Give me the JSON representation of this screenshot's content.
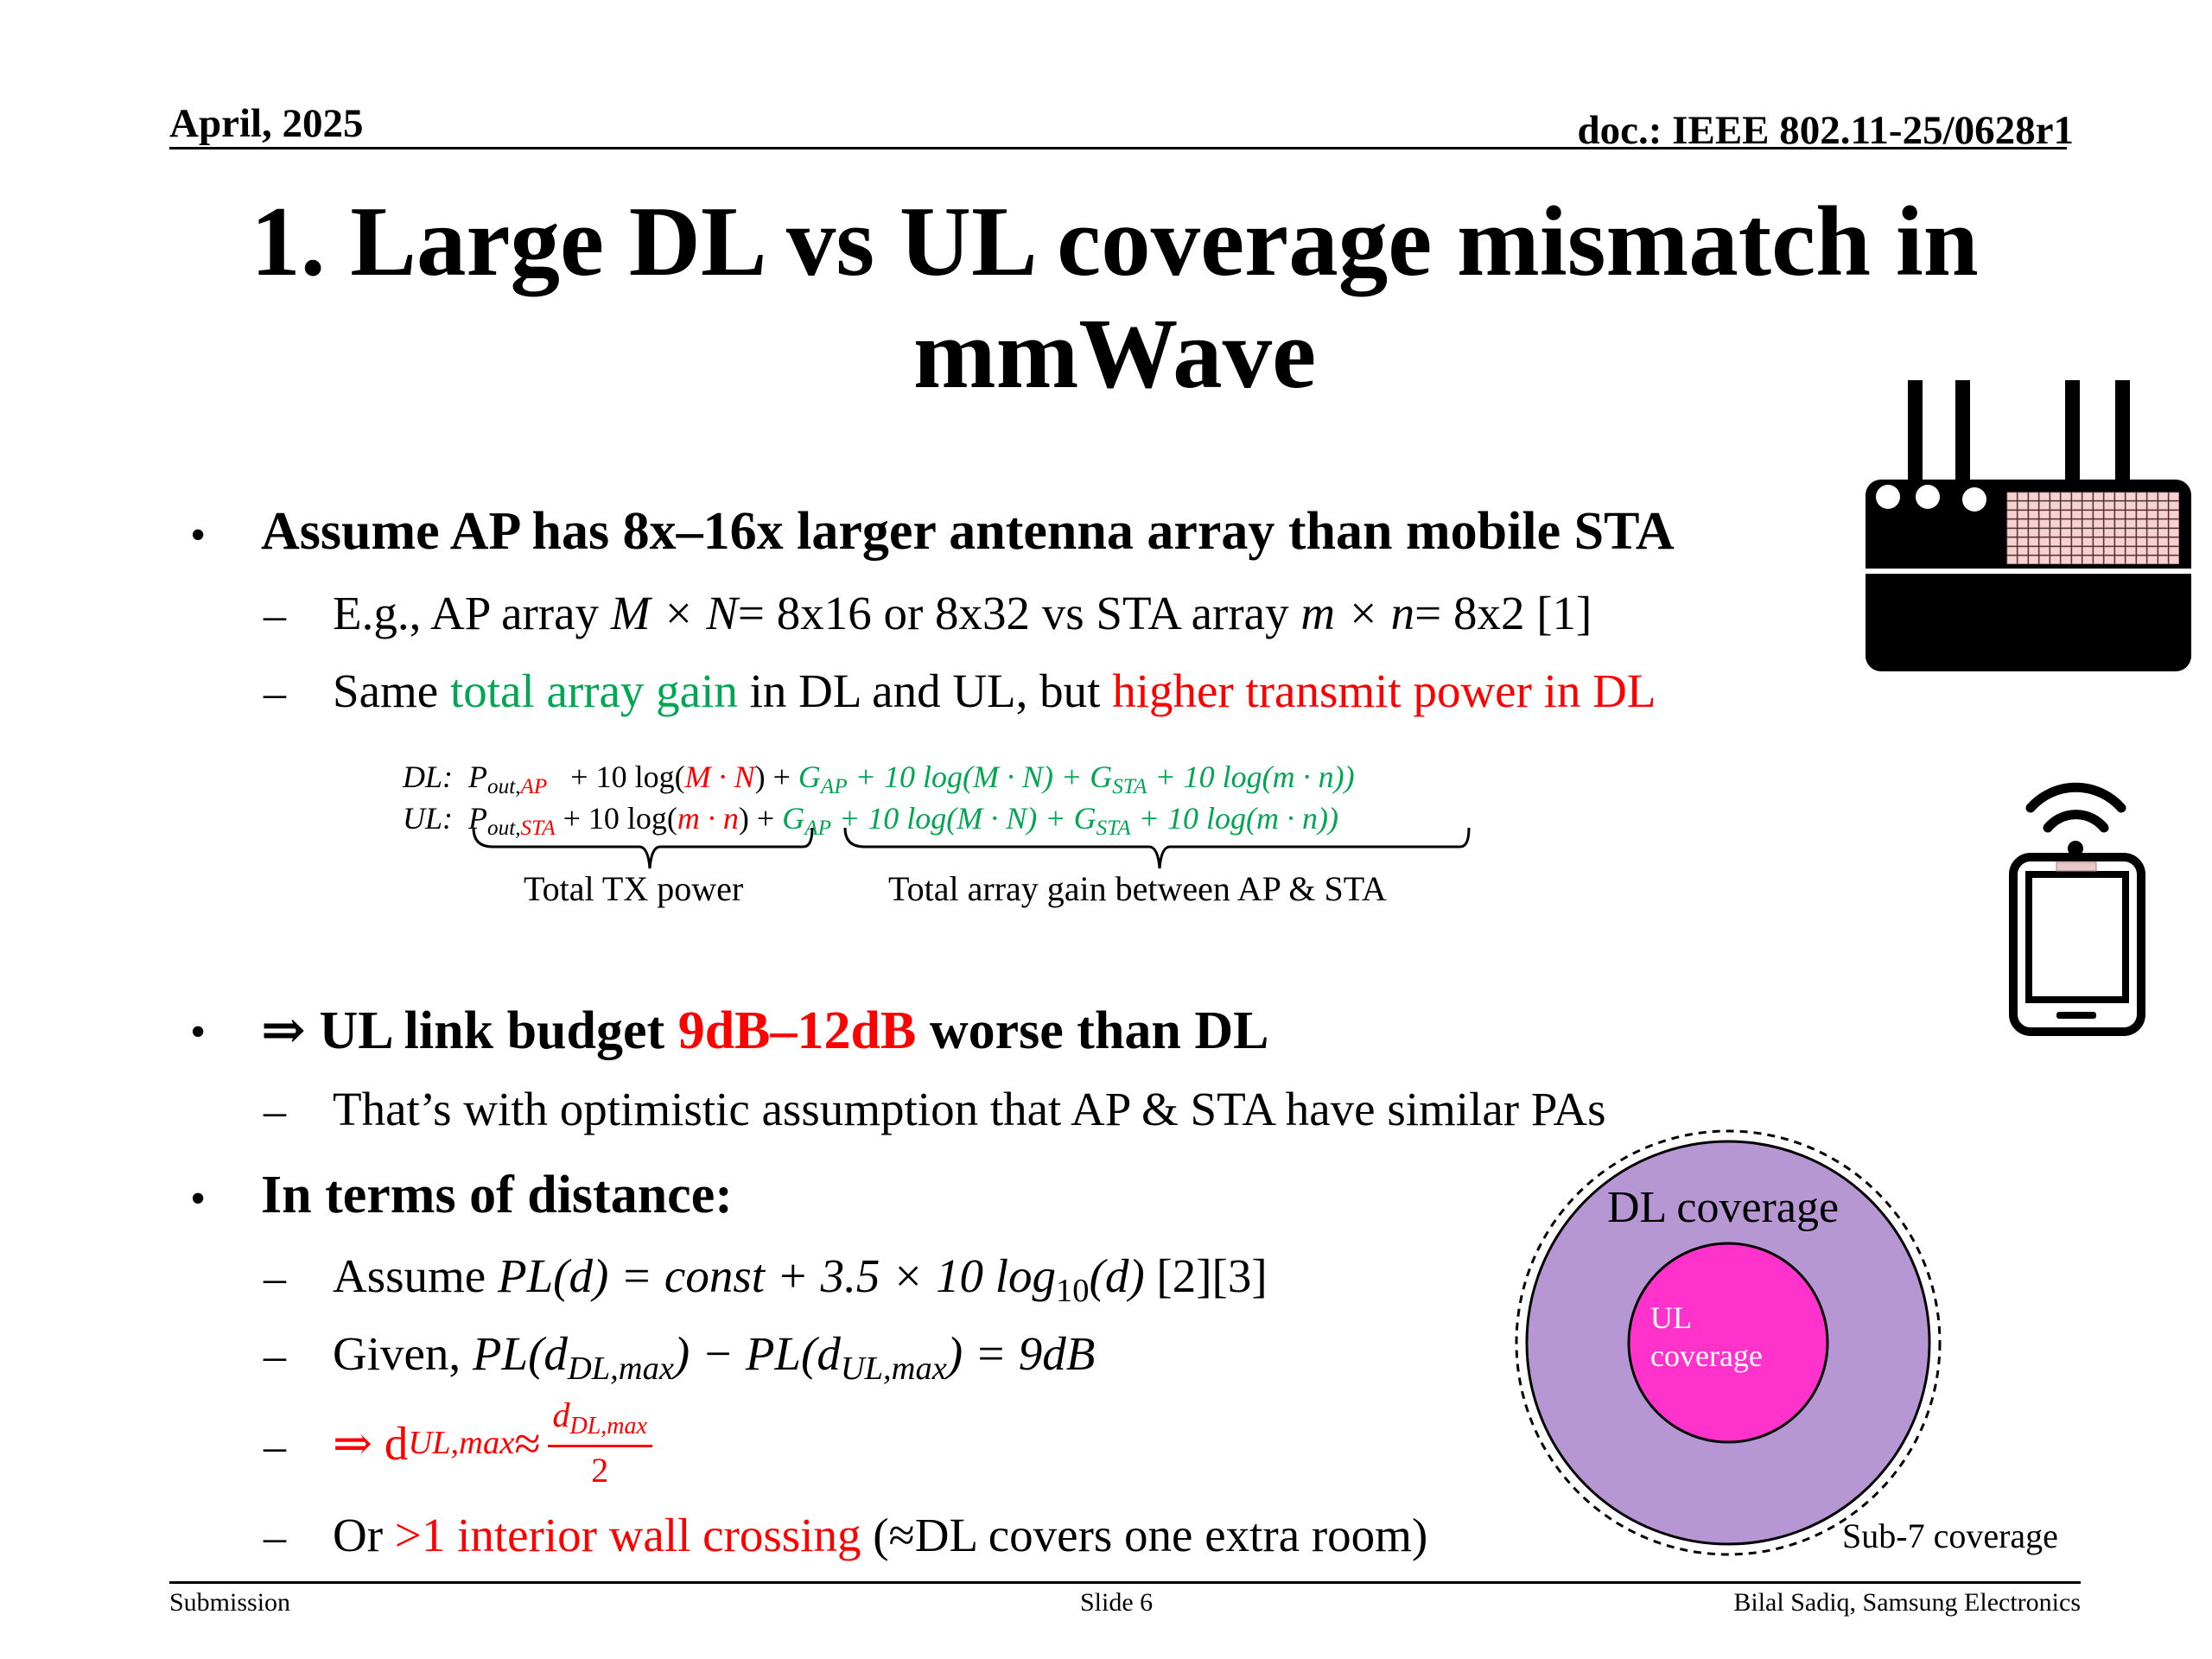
{
  "header": {
    "date": "April, 2025",
    "doc": "doc.: IEEE 802.11-25/0628r1"
  },
  "title": "1. Large DL vs UL coverage mismatch in mmWave",
  "bullets": {
    "b1": "Assume AP has 8x–16x larger antenna array than mobile STA",
    "b1_sub1": {
      "pre": "E.g., AP array ",
      "ap_math": "M × N",
      "mid": "= 8x16 or 8x32 vs STA array ",
      "sta_math": "m × n",
      "post": "= 8x2   [1]"
    },
    "b1_sub2": {
      "pre": "Same ",
      "green": "total array gain",
      "mid": " in DL and UL, but ",
      "red": "higher transmit power in DL"
    },
    "b2_pre": "⇒ UL link budget ",
    "b2_red": "9dB–12dB",
    "b2_post": " worse than DL",
    "b2_sub1": "That’s with optimistic assumption that AP & STA have similar PAs",
    "b3": "In terms of distance:",
    "b3_sub1": {
      "pre": "Assume ",
      "math": "PL(d) = const + 3.5 × 10 log",
      "sub": "10",
      "math_post": "(d)",
      "refs": "  [2][3]"
    },
    "b3_sub2": {
      "pre": "Given, ",
      "pl": "PL(d",
      "dlsub": "DL,max",
      "mid": ") − PL(d",
      "ulsub": "UL,max",
      "post": ") = 9dB"
    },
    "b3_sub3": {
      "arrow": "⇒ d",
      "ulsub": "UL,max",
      "approx": " ≈ ",
      "num": "d",
      "numsub": "DL,max",
      "den": "2"
    },
    "b3_sub4": {
      "pre": "Or ",
      "red": ">1 interior wall crossing",
      "post": " (≈DL covers one extra room)"
    }
  },
  "equation": {
    "dl_label": "DL:",
    "ul_label": "UL:",
    "p": "P",
    "out": "out,",
    "ap": "AP",
    "sta": "STA",
    "plus10log": "+ 10 log(",
    "dl_mn": "M · N",
    "ul_mn": "m · n",
    "close": ")",
    "plus": "+",
    "gain": "G",
    "gain_ap": "AP",
    "gain_mid": " + 10 log(M · N) + G",
    "gain_sta": "STA",
    "gain_end": " + 10 log(m · n)",
    "total_tx": "Total TX power",
    "total_gain": "Total array gain between AP & STA"
  },
  "coverage": {
    "dl": "DL coverage",
    "ul_line1": "UL",
    "ul_line2": "coverage",
    "sub7": "Sub-7 coverage",
    "colors": {
      "dl": "#b797d3",
      "ul": "#ff33cc"
    }
  },
  "footer": {
    "left": "Submission",
    "center": "Slide 6",
    "right": "Bilal Sadiq, Samsung Electronics"
  },
  "icons": [
    "router-icon",
    "phone-wifi-icon"
  ]
}
